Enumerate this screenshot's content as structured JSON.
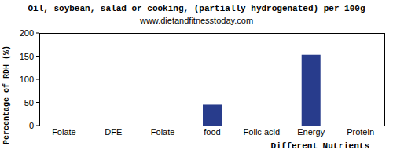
{
  "chart_data": {
    "type": "bar",
    "title": "Oil, soybean, salad or cooking, (partially hydrogenated) per 100g",
    "subtitle": "www.dietandfitnesstoday.com",
    "x_label": "Different Nutrients",
    "y_label": "Percentage of RDH (%)",
    "categories": [
      "Folate",
      "DFE",
      "Folate",
      "food",
      "Folic acid",
      "Energy",
      "Protein"
    ],
    "values": [
      0,
      0,
      0,
      45,
      0,
      153,
      0
    ],
    "color": "#283c8c",
    "ylim": [
      0,
      200
    ],
    "yticks": [
      0,
      50,
      100,
      150,
      200
    ],
    "grid": false
  }
}
